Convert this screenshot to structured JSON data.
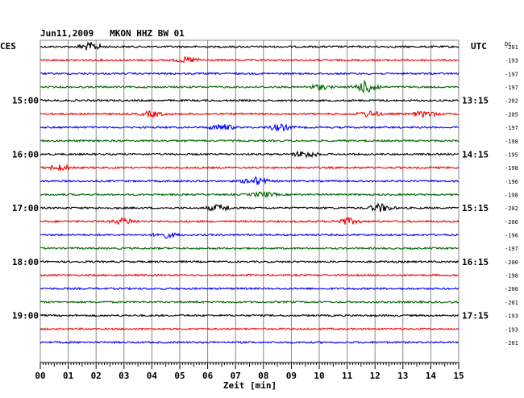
{
  "chart_data": {
    "type": "line",
    "title": "Jun11,2009   MKON HHZ BW 01",
    "left_tz": "CES",
    "right_tz": "UTC",
    "dc_label": "DC",
    "xlabel": "Zeit [min]",
    "x_ticks": [
      "00",
      "01",
      "02",
      "03",
      "04",
      "05",
      "06",
      "07",
      "08",
      "09",
      "10",
      "11",
      "12",
      "13",
      "14",
      "15"
    ],
    "xlim": [
      0,
      15
    ],
    "grid": true,
    "left_hour_labels": [
      {
        "row": 4,
        "text": "15:00"
      },
      {
        "row": 8,
        "text": "16:00"
      },
      {
        "row": 12,
        "text": "17:00"
      },
      {
        "row": 16,
        "text": "18:00"
      },
      {
        "row": 20,
        "text": "19:00"
      }
    ],
    "right_hour_labels": [
      {
        "row": 4,
        "text": "13:15"
      },
      {
        "row": 8,
        "text": "14:15"
      },
      {
        "row": 12,
        "text": "15:15"
      },
      {
        "row": 16,
        "text": "16:15"
      },
      {
        "row": 20,
        "text": "17:15"
      }
    ],
    "trace_colors": [
      "#000000",
      "#ee0000",
      "#0000ee",
      "#006600"
    ],
    "dc_offsets": [
      "-201",
      "-193",
      "-197",
      "-197",
      "-202",
      "-205",
      "-197",
      "-198",
      "-195",
      "-198",
      "-196",
      "-198",
      "-202",
      "-200",
      "-196",
      "-197",
      "-200",
      "-198",
      "-200",
      "-201",
      "-193",
      "-193",
      "-201"
    ],
    "bursts": [
      {
        "row": 0,
        "x": 1.8,
        "amp": 2.2
      },
      {
        "row": 1,
        "x": 5.3,
        "amp": 1.5
      },
      {
        "row": 3,
        "x": 11.7,
        "amp": 3.4
      },
      {
        "row": 3,
        "x": 10.0,
        "amp": 1.3
      },
      {
        "row": 5,
        "x": 4.0,
        "amp": 1.4
      },
      {
        "row": 5,
        "x": 11.8,
        "amp": 1.5
      },
      {
        "row": 5,
        "x": 13.8,
        "amp": 1.5
      },
      {
        "row": 6,
        "x": 6.5,
        "amp": 1.7
      },
      {
        "row": 6,
        "x": 8.6,
        "amp": 1.7
      },
      {
        "row": 8,
        "x": 9.5,
        "amp": 1.8
      },
      {
        "row": 9,
        "x": 0.7,
        "amp": 1.5
      },
      {
        "row": 10,
        "x": 7.7,
        "amp": 2.1
      },
      {
        "row": 11,
        "x": 8.0,
        "amp": 1.4
      },
      {
        "row": 12,
        "x": 6.4,
        "amp": 1.8
      },
      {
        "row": 12,
        "x": 12.2,
        "amp": 2.2
      },
      {
        "row": 13,
        "x": 3.0,
        "amp": 1.7
      },
      {
        "row": 13,
        "x": 11.0,
        "amp": 1.8
      },
      {
        "row": 14,
        "x": 4.5,
        "amp": 1.4
      }
    ]
  }
}
